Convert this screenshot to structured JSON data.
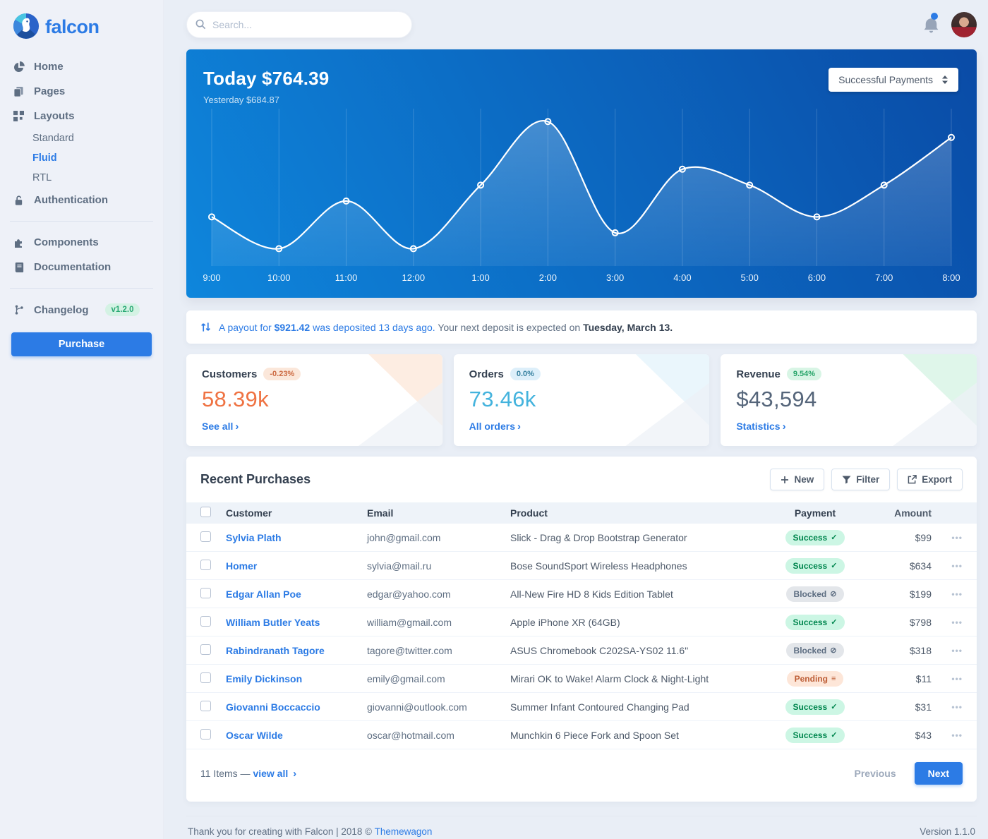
{
  "brand": {
    "name": "falcon"
  },
  "sidebar": {
    "home": "Home",
    "pages": "Pages",
    "layouts": "Layouts",
    "layouts_children": {
      "standard": "Standard",
      "fluid": "Fluid",
      "rtl": "RTL"
    },
    "authentication": "Authentication",
    "components": "Components",
    "documentation": "Documentation",
    "changelog": "Changelog",
    "changelog_badge": "v1.2.0",
    "purchase": "Purchase"
  },
  "topbar": {
    "search_placeholder": "Search..."
  },
  "chart_data": {
    "type": "line",
    "title": "Today $764.39",
    "subtitle": "Yesterday $684.87",
    "selector": "Successful Payments",
    "x": [
      "9:00",
      "10:00",
      "11:00",
      "12:00",
      "1:00",
      "2:00",
      "3:00",
      "4:00",
      "5:00",
      "6:00",
      "7:00",
      "8:00"
    ],
    "values": [
      34,
      12,
      45,
      12,
      56,
      100,
      23,
      67,
      56,
      34,
      56,
      89
    ],
    "ylim": [
      0,
      105
    ],
    "grid": "vertical-only",
    "legend": "none",
    "line_color": "#ffffff",
    "area_opacity": 0.18
  },
  "payout": {
    "prefix": "A payout for",
    "amount": "$921.42",
    "suffix": "was deposited 13 days ago.",
    "rest": "Your next deposit is expected on",
    "date": "Tuesday, March 13."
  },
  "stats": [
    {
      "title": "Customers",
      "badge": "-0.23%",
      "value": "58.39k",
      "link": "See all",
      "value_color": "#ef7242",
      "badge_bg": "#fbe7da",
      "badge_color": "#cc6a42",
      "corner": "#fdeadd"
    },
    {
      "title": "Orders",
      "badge": "0.0%",
      "value": "73.46k",
      "link": "All orders",
      "value_color": "#44b3dd",
      "badge_bg": "#ddeffa",
      "badge_color": "#35809f",
      "corner": "#e6f4fb"
    },
    {
      "title": "Revenue",
      "badge": "9.54%",
      "value": "$43,594",
      "link": "Statistics",
      "value_color": "#55657a",
      "badge_bg": "#d8f5e5",
      "badge_color": "#27a569",
      "corner": "#d9f5e6"
    }
  ],
  "table": {
    "title": "Recent Purchases",
    "buttons": {
      "new": "New",
      "filter": "Filter",
      "export": "Export"
    },
    "columns": [
      "Customer",
      "Email",
      "Product",
      "Payment",
      "Amount"
    ],
    "rows": [
      {
        "customer": "Sylvia Plath",
        "email": "john@gmail.com",
        "product": "Slick - Drag & Drop Bootstrap Generator",
        "payment": "Success",
        "amount": "$99"
      },
      {
        "customer": "Homer",
        "email": "sylvia@mail.ru",
        "product": "Bose SoundSport Wireless Headphones",
        "payment": "Success",
        "amount": "$634"
      },
      {
        "customer": "Edgar Allan Poe",
        "email": "edgar@yahoo.com",
        "product": "All-New Fire HD 8 Kids Edition Tablet",
        "payment": "Blocked",
        "amount": "$199"
      },
      {
        "customer": "William Butler Yeats",
        "email": "william@gmail.com",
        "product": "Apple iPhone XR (64GB)",
        "payment": "Success",
        "amount": "$798"
      },
      {
        "customer": "Rabindranath Tagore",
        "email": "tagore@twitter.com",
        "product": "ASUS Chromebook C202SA-YS02 11.6\"",
        "payment": "Blocked",
        "amount": "$318"
      },
      {
        "customer": "Emily Dickinson",
        "email": "emily@gmail.com",
        "product": "Mirari OK to Wake! Alarm Clock & Night-Light",
        "payment": "Pending",
        "amount": "$11"
      },
      {
        "customer": "Giovanni Boccaccio",
        "email": "giovanni@outlook.com",
        "product": "Summer Infant Contoured Changing Pad",
        "payment": "Success",
        "amount": "$31"
      },
      {
        "customer": "Oscar Wilde",
        "email": "oscar@hotmail.com",
        "product": "Munchkin 6 Piece Fork and Spoon Set",
        "payment": "Success",
        "amount": "$43"
      }
    ],
    "footer": {
      "items_text": "11 Items —",
      "view_all": "view all",
      "previous": "Previous",
      "next": "Next"
    }
  },
  "icons": {
    "status": {
      "Success": "✓",
      "Blocked": "⊘",
      "Pending": "≡"
    },
    "chevron": "›",
    "dots": "•••"
  },
  "page_footer": {
    "text": "Thank you for creating with Falcon | 2018 ©",
    "link": "Themewagon",
    "version": "Version 1.1.0"
  }
}
